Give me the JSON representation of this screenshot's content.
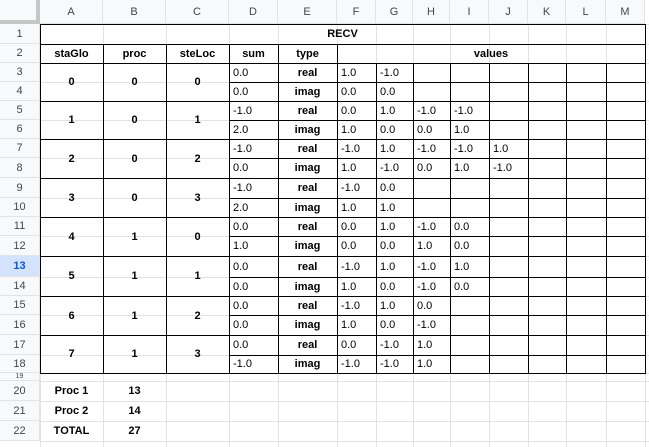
{
  "columns": [
    "A",
    "B",
    "C",
    "D",
    "E",
    "F",
    "G",
    "H",
    "I",
    "J",
    "K",
    "L",
    "M"
  ],
  "rows": [
    "1",
    "2",
    "3",
    "4",
    "5",
    "6",
    "7",
    "8",
    "9",
    "10",
    "11",
    "12",
    "13",
    "14",
    "15",
    "16",
    "17",
    "18",
    "19",
    "20",
    "21",
    "22"
  ],
  "selected_row": "13",
  "title": "RECV",
  "headers": {
    "staGlo": "staGlo",
    "proc": "proc",
    "steLoc": "steLoc",
    "sum": "sum",
    "type": "type",
    "values": "values"
  },
  "groups": [
    {
      "staGlo": "0",
      "proc": "0",
      "steLoc": "0",
      "rows": [
        {
          "sum": "0.0",
          "type": "real",
          "values": [
            "1.0",
            "-1.0"
          ]
        },
        {
          "sum": "0.0",
          "type": "imag",
          "values": [
            "0.0",
            "0.0"
          ]
        }
      ]
    },
    {
      "staGlo": "1",
      "proc": "0",
      "steLoc": "1",
      "rows": [
        {
          "sum": "-1.0",
          "type": "real",
          "values": [
            "0.0",
            "1.0",
            "-1.0",
            "-1.0"
          ]
        },
        {
          "sum": "2.0",
          "type": "imag",
          "values": [
            "1.0",
            "0.0",
            "0.0",
            "1.0"
          ]
        }
      ]
    },
    {
      "staGlo": "2",
      "proc": "0",
      "steLoc": "2",
      "rows": [
        {
          "sum": "-1.0",
          "type": "real",
          "values": [
            "-1.0",
            "1.0",
            "-1.0",
            "-1.0",
            "1.0"
          ]
        },
        {
          "sum": "0.0",
          "type": "imag",
          "values": [
            "1.0",
            "-1.0",
            "0.0",
            "1.0",
            "-1.0"
          ]
        }
      ]
    },
    {
      "staGlo": "3",
      "proc": "0",
      "steLoc": "3",
      "rows": [
        {
          "sum": "-1.0",
          "type": "real",
          "values": [
            "-1.0",
            "0.0"
          ]
        },
        {
          "sum": "2.0",
          "type": "imag",
          "values": [
            "1.0",
            "1.0"
          ]
        }
      ]
    },
    {
      "staGlo": "4",
      "proc": "1",
      "steLoc": "0",
      "rows": [
        {
          "sum": "0.0",
          "type": "real",
          "values": [
            "0.0",
            "1.0",
            "-1.0",
            "0.0"
          ]
        },
        {
          "sum": "1.0",
          "type": "imag",
          "values": [
            "0.0",
            "0.0",
            "1.0",
            "0.0"
          ]
        }
      ]
    },
    {
      "staGlo": "5",
      "proc": "1",
      "steLoc": "1",
      "rows": [
        {
          "sum": "0.0",
          "type": "real",
          "values": [
            "-1.0",
            "1.0",
            "-1.0",
            "1.0"
          ]
        },
        {
          "sum": "0.0",
          "type": "imag",
          "values": [
            "1.0",
            "0.0",
            "-1.0",
            "0.0"
          ]
        }
      ]
    },
    {
      "staGlo": "6",
      "proc": "1",
      "steLoc": "2",
      "rows": [
        {
          "sum": "0.0",
          "type": "real",
          "values": [
            "-1.0",
            "1.0",
            "0.0"
          ]
        },
        {
          "sum": "0.0",
          "type": "imag",
          "values": [
            "1.0",
            "0.0",
            "-1.0"
          ]
        }
      ]
    },
    {
      "staGlo": "7",
      "proc": "1",
      "steLoc": "3",
      "rows": [
        {
          "sum": "0.0",
          "type": "real",
          "values": [
            "0.0",
            "-1.0",
            "1.0"
          ]
        },
        {
          "sum": "-1.0",
          "type": "imag",
          "values": [
            "-1.0",
            "-1.0",
            "1.0"
          ]
        }
      ]
    }
  ],
  "summary": [
    {
      "label": "Proc 1",
      "value": "13"
    },
    {
      "label": "Proc 2",
      "value": "14"
    },
    {
      "label": "TOTAL",
      "value": "27"
    }
  ]
}
